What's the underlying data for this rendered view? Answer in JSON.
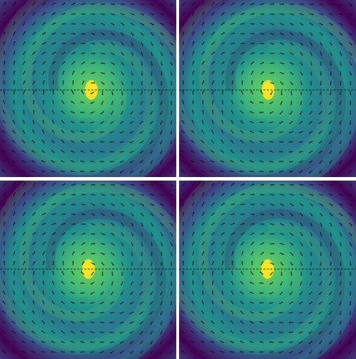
{
  "figure": {
    "panels": [
      {
        "id": "top-left",
        "center": "yellow-peak",
        "pattern": "spiral-vortex-with-arrows"
      },
      {
        "id": "top-right",
        "center": "yellow-peak",
        "pattern": "spiral-vortex-with-arrows"
      },
      {
        "id": "bottom-left",
        "center": "yellow-peak",
        "pattern": "spiral-vortex-with-arrows"
      },
      {
        "id": "bottom-right",
        "center": "yellow-peak",
        "pattern": "spiral-vortex-with-arrows"
      }
    ],
    "colormap": [
      "#440154",
      "#3b528b",
      "#21918c",
      "#5ec962",
      "#fde725"
    ],
    "arrow_color": "#111111",
    "divider_color": "#ffffff",
    "axis_line_color": "#000000"
  }
}
